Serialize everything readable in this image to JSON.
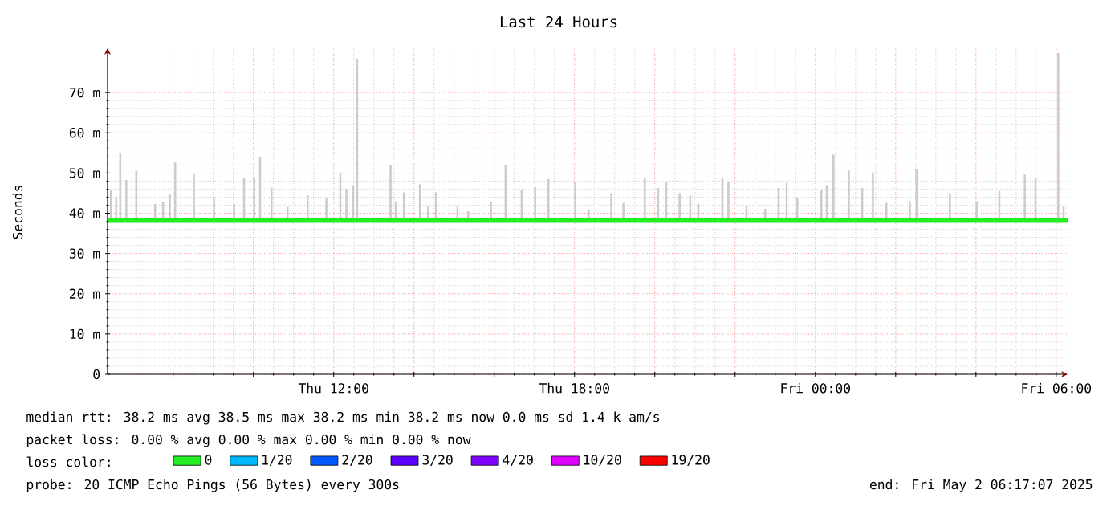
{
  "chart_data": {
    "type": "line",
    "title": "Last 24 Hours",
    "ylabel": "Seconds",
    "legend_title": "loss color:",
    "xlim": [
      "2025-05-01T06:22",
      "2025-05-02T06:17"
    ],
    "xticks": [
      {
        "value": "2025-05-01T08:00",
        "label": null
      },
      {
        "value": "2025-05-01T10:00",
        "label": null
      },
      {
        "value": "2025-05-01T12:00",
        "label": "Thu 12:00"
      },
      {
        "value": "2025-05-01T14:00",
        "label": null
      },
      {
        "value": "2025-05-01T16:00",
        "label": null
      },
      {
        "value": "2025-05-01T18:00",
        "label": "Thu 18:00"
      },
      {
        "value": "2025-05-01T20:00",
        "label": null
      },
      {
        "value": "2025-05-01T22:00",
        "label": null
      },
      {
        "value": "2025-05-02T00:00",
        "label": "Fri 00:00"
      },
      {
        "value": "2025-05-02T02:00",
        "label": null
      },
      {
        "value": "2025-05-02T04:00",
        "label": null
      },
      {
        "value": "2025-05-02T06:00",
        "label": "Fri 06:00"
      }
    ],
    "ylim": [
      0,
      81
    ],
    "yticks": [
      0,
      {
        "value": 10,
        "label": "10 m"
      },
      {
        "value": 20,
        "label": "20 m"
      },
      {
        "value": 30,
        "label": "30 m"
      },
      {
        "value": 40,
        "label": "40 m"
      },
      {
        "value": 50,
        "label": "50 m"
      },
      {
        "value": 60,
        "label": "60 m"
      },
      {
        "value": 70,
        "label": "70 m"
      }
    ],
    "grid": true,
    "legend": "bottom",
    "series": [
      {
        "type": "bar",
        "color": "#cccccc",
        "x": [
          "2025-05-01T06:27",
          "2025-05-01T06:35",
          "2025-05-01T06:41",
          "2025-05-01T06:50",
          "2025-05-01T07:05",
          "2025-05-01T07:33",
          "2025-05-01T07:45",
          "2025-05-01T07:55",
          "2025-05-01T08:03",
          "2025-05-01T08:31",
          "2025-05-01T09:01",
          "2025-05-01T09:31",
          "2025-05-01T09:46",
          "2025-05-01T10:01",
          "2025-05-01T10:10",
          "2025-05-01T10:27",
          "2025-05-01T10:51",
          "2025-05-01T11:21",
          "2025-05-01T11:49",
          "2025-05-01T12:10",
          "2025-05-01T12:19",
          "2025-05-01T12:29",
          "2025-05-01T12:35",
          "2025-05-01T13:25",
          "2025-05-01T13:33",
          "2025-05-01T13:45",
          "2025-05-01T14:09",
          "2025-05-01T14:21",
          "2025-05-01T14:33",
          "2025-05-01T15:05",
          "2025-05-01T15:21",
          "2025-05-01T15:55",
          "2025-05-01T16:17",
          "2025-05-01T16:41",
          "2025-05-01T17:01",
          "2025-05-01T17:21",
          "2025-05-01T18:01",
          "2025-05-01T18:21",
          "2025-05-01T18:55",
          "2025-05-01T19:13",
          "2025-05-01T19:45",
          "2025-05-01T20:05",
          "2025-05-01T20:17",
          "2025-05-01T20:37",
          "2025-05-01T20:53",
          "2025-05-01T21:05",
          "2025-05-01T21:41",
          "2025-05-01T21:50",
          "2025-05-01T22:17",
          "2025-05-01T22:45",
          "2025-05-01T23:05",
          "2025-05-01T23:17",
          "2025-05-01T23:33",
          "2025-05-02T00:09",
          "2025-05-02T00:17",
          "2025-05-02T00:27",
          "2025-05-02T00:50",
          "2025-05-02T01:10",
          "2025-05-02T01:26",
          "2025-05-02T01:46",
          "2025-05-02T02:21",
          "2025-05-02T02:31",
          "2025-05-02T03:21",
          "2025-05-02T04:01",
          "2025-05-02T04:35",
          "2025-05-02T05:13",
          "2025-05-02T05:29",
          "2025-05-02T06:03",
          "2025-05-02T06:11"
        ],
        "base": [
          38.2,
          38.2,
          38.2,
          38.2,
          38.2,
          38.2,
          38.2,
          38.2,
          38.2,
          38.2,
          38.2,
          38.2,
          38.2,
          38.2,
          38.2,
          38.2,
          38.2,
          38.2,
          38.2,
          38.2,
          38.2,
          38.2,
          38.2,
          38.2,
          38.2,
          38.2,
          38.2,
          38.2,
          38.2,
          38.2,
          38.2,
          38.2,
          38.2,
          38.2,
          38.2,
          38.2,
          38.2,
          38.2,
          38.2,
          38.2,
          38.2,
          38.2,
          38.2,
          38.2,
          38.2,
          38.2,
          38.2,
          38.2,
          38.2,
          38.2,
          38.2,
          38.2,
          38.2,
          38.2,
          38.2,
          38.2,
          38.2,
          38.2,
          38.2,
          38.2,
          38.2,
          38.2,
          38.2,
          38.2,
          38.2,
          38.2,
          38.2,
          38.2,
          38.2
        ],
        "values": [
          7.5,
          5.5,
          16.8,
          10.1,
          12.4,
          4.1,
          4.5,
          6.5,
          14.4,
          11.5,
          5.5,
          4.1,
          10.6,
          10.6,
          15.9,
          8.2,
          3.4,
          6.3,
          5.5,
          11.8,
          7.8,
          8.8,
          40,
          13.7,
          4.6,
          7,
          9,
          3.4,
          7,
          3.4,
          2.3,
          4.7,
          13.7,
          7.7,
          8.3,
          10.3,
          9.7,
          2.8,
          6.8,
          4.4,
          10.5,
          8.1,
          9.7,
          6.8,
          6.2,
          4.2,
          10.5,
          9.7,
          3.6,
          2.9,
          8.1,
          9.4,
          5.5,
          7.7,
          8.8,
          16.4,
          12.4,
          8.1,
          11.9,
          4.4,
          4.8,
          12.8,
          6.8,
          4.8,
          7.4,
          11.4,
          10.5,
          41.6,
          3.6
        ]
      },
      {
        "name": "0",
        "color": "#22ee22",
        "x": [
          "2025-05-01T06:22",
          "2025-05-02T06:17"
        ],
        "values": [
          38.2,
          38.2
        ]
      },
      {
        "name": "1/20",
        "color": "#00b8ff"
      },
      {
        "name": "2/20",
        "color": "#0059ff"
      },
      {
        "name": "3/20",
        "color": "#5e00ff"
      },
      {
        "name": "4/20",
        "color": "#7e00ff"
      },
      {
        "name": "10/20",
        "color": "#dd00ff"
      },
      {
        "name": "19/20",
        "color": "#ff0000"
      }
    ],
    "annotations": [
      "median rtt:  38.2 ms avg  38.5 ms max  38.2 ms min  38.2 ms now  0.0 ms sd  1.4 k am/s",
      "packet loss: 0.00 % avg  0.00 % max  0.00 % min  0.00 % now",
      "probe:       20 ICMP Echo Pings (56 Bytes) every 300s",
      "end: Fri May  2 06:17:07 2025"
    ]
  }
}
